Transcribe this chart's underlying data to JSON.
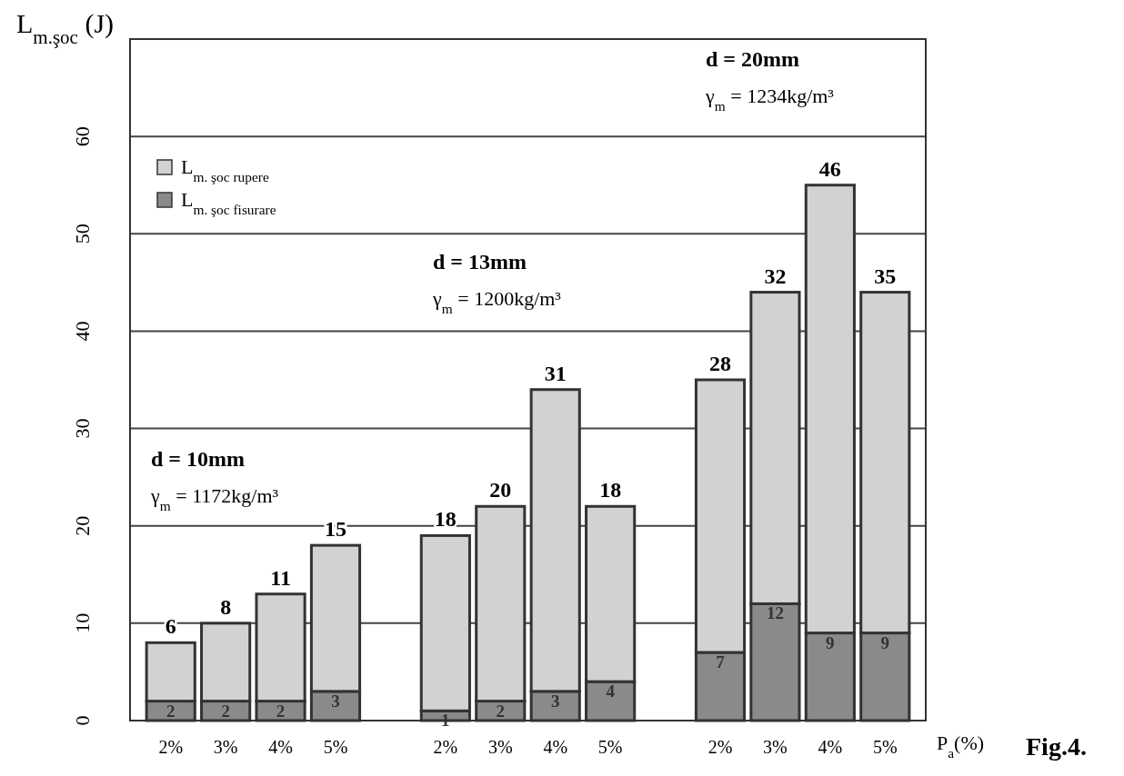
{
  "chart_data": {
    "type": "bar",
    "stacked": true,
    "xlabel": "P$_{a}$(%)",
    "ylabel": "L$_{m.şoc}$ (J)",
    "categories": [
      "2%",
      "3%",
      "4%",
      "5%",
      null,
      "2%",
      "3%",
      "4%",
      "5%",
      null,
      "2%",
      "3%",
      "4%",
      "5%"
    ],
    "series": [
      {
        "name": "L$_{m. şoc fisurare}$",
        "color": "#8a8a8a",
        "values": [
          2,
          2,
          2,
          3,
          null,
          1,
          2,
          3,
          4,
          null,
          7,
          12,
          9,
          9
        ]
      },
      {
        "name": "L$_{m. şoc rupere}$",
        "color": "#d2d2d2",
        "values": [
          6,
          8,
          11,
          15,
          null,
          18,
          20,
          31,
          18,
          null,
          28,
          32,
          46,
          35
        ]
      }
    ],
    "ylim": [
      0,
      70
    ],
    "yticks": [
      0,
      10,
      20,
      30,
      40,
      50,
      60
    ],
    "grid": "y",
    "legend": "top left",
    "data_labels": true,
    "annotations": [
      "d = 10mm",
      "γ$_{m}$ = 1172kg/m³",
      "d = 13mm",
      "γ$_{m}$ = 1200kg/m³",
      "d = 20mm",
      "γ$_{m}$ = 1234kg/m³",
      "Fig.4."
    ]
  }
}
